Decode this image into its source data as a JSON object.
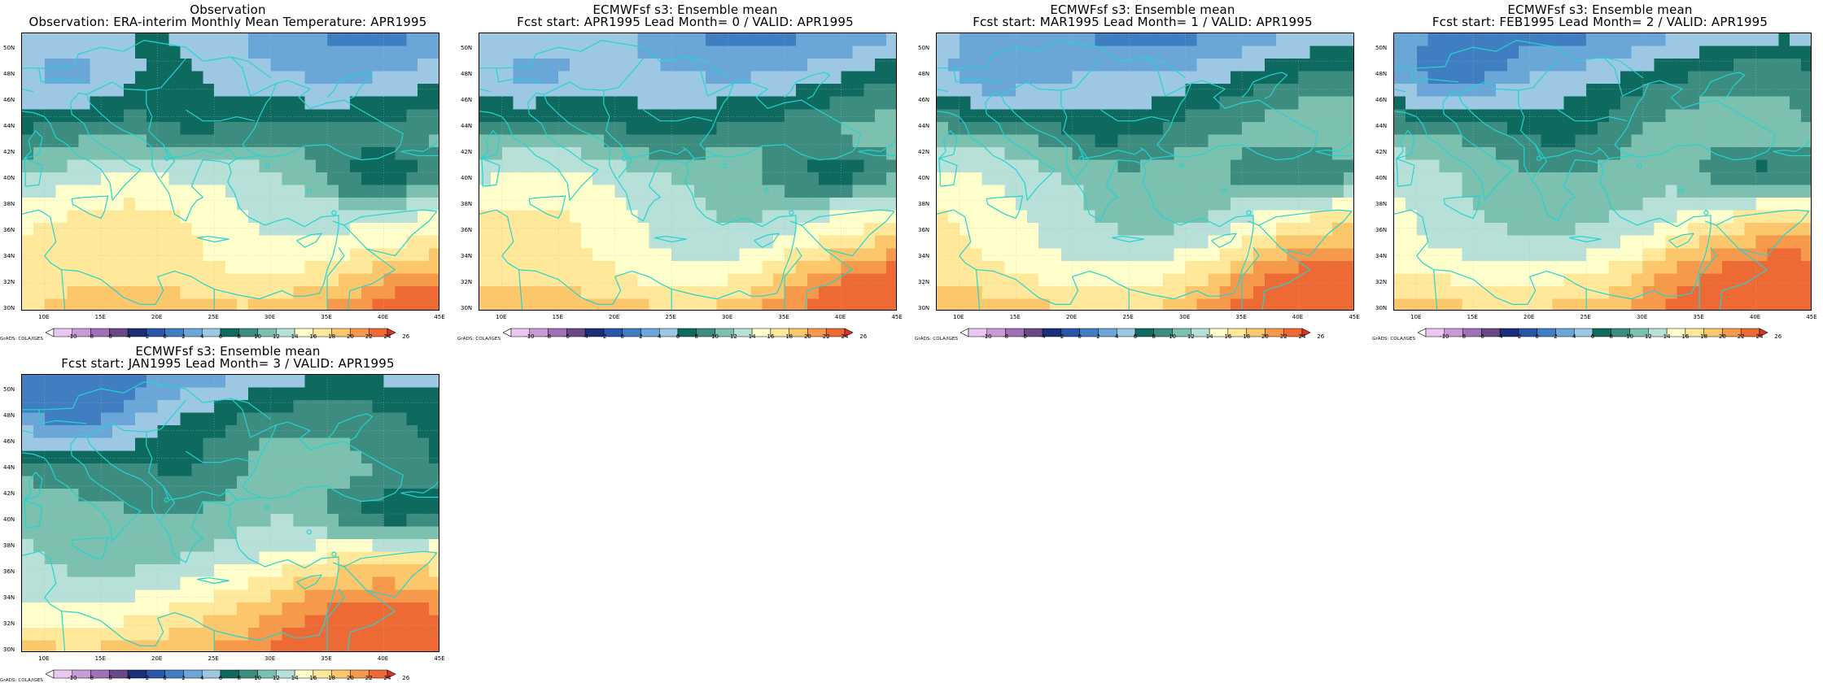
{
  "panels": [
    {
      "title1": "Observation",
      "title2": "Observation: ERA-interim Monthly Mean Temperature: APR1995",
      "variant": 0
    },
    {
      "title1": "ECMWFsf s3: Ensemble mean",
      "title2": "Fcst start: APR1995  Lead Month= 0 / VALID: APR1995",
      "variant": 1
    },
    {
      "title1": "ECMWFsf s3: Ensemble mean",
      "title2": "Fcst start: MAR1995  Lead Month= 1 / VALID: APR1995",
      "variant": 2
    },
    {
      "title1": "ECMWFsf s3: Ensemble mean",
      "title2": "Fcst start: FEB1995  Lead Month= 2 / VALID: APR1995",
      "variant": 3
    },
    {
      "title1": "ECMWFsf s3: Ensemble mean",
      "title2": "Fcst start: JAN1995  Lead Month= 3 / VALID: APR1995",
      "variant": 4
    }
  ],
  "lat_labels": [
    "50N",
    "48N",
    "46N",
    "44N",
    "42N",
    "40N",
    "38N",
    "36N",
    "34N",
    "32N",
    "30N"
  ],
  "lon_labels": [
    "10E",
    "15E",
    "20E",
    "25E",
    "30E",
    "35E",
    "40E",
    "45E"
  ],
  "colorbar": {
    "labels": [
      "-10",
      "-8",
      "-6",
      "-4",
      "-2",
      "0",
      "2",
      "4",
      "6",
      "8",
      "10",
      "12",
      "14",
      "16",
      "18",
      "20",
      "22",
      "24",
      "26"
    ],
    "colors": [
      "#ffffff",
      "#e8c8f0",
      "#c89ad8",
      "#a070b8",
      "#6a4888",
      "#1a2e7a",
      "#2b55a8",
      "#3f7ec0",
      "#6aa6d8",
      "#9cc8e4",
      "#0e6a5e",
      "#3d8c80",
      "#7cc0b0",
      "#b6e0d8",
      "#ffffcc",
      "#ffe89a",
      "#fcc66a",
      "#f7994a",
      "#ee6a34",
      "#e03226"
    ],
    "credit": "GrADS: COLA/IGES"
  }
}
